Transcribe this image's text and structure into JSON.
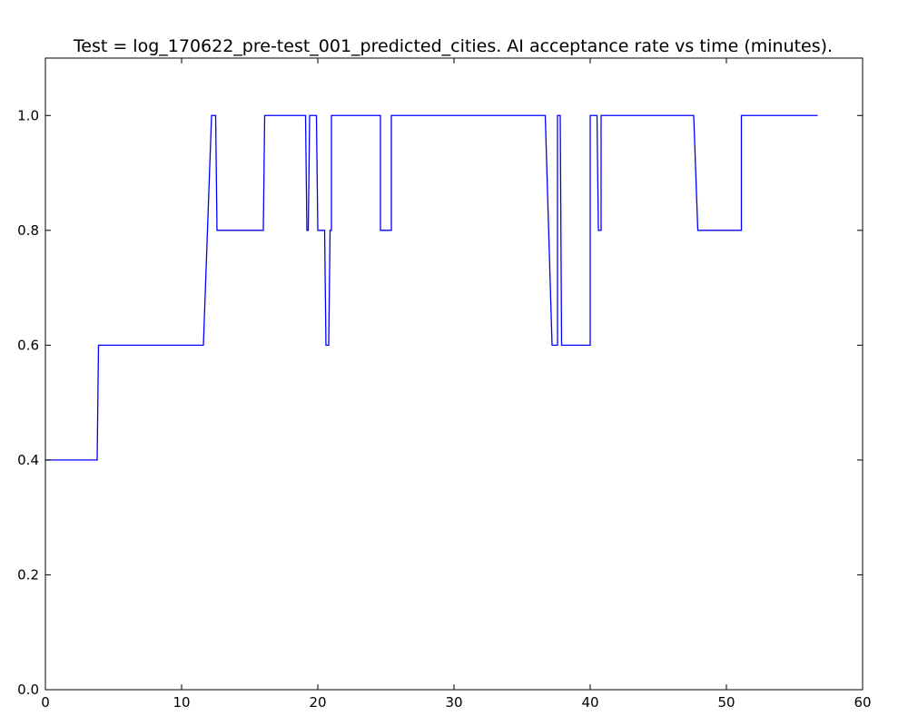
{
  "chart_data": {
    "type": "line",
    "title": "Test = log_170622_pre-test_001_predicted_cities. AI acceptance rate vs time (minutes).",
    "xlabel": "",
    "ylabel": "",
    "xlim": [
      0,
      60
    ],
    "ylim": [
      0.0,
      1.1
    ],
    "x_ticks": [
      0,
      10,
      20,
      30,
      40,
      50,
      60
    ],
    "x_tick_labels": [
      "0",
      "10",
      "20",
      "30",
      "40",
      "50",
      "60"
    ],
    "y_ticks": [
      0.0,
      0.2,
      0.4,
      0.6,
      0.8,
      1.0
    ],
    "y_tick_labels": [
      "0.0",
      "0.2",
      "0.4",
      "0.6",
      "0.8",
      "1.0"
    ],
    "grid": false,
    "series": [
      {
        "color": "#0000ff",
        "points": [
          [
            0.0,
            0.4
          ],
          [
            3.8,
            0.4
          ],
          [
            3.9,
            0.6
          ],
          [
            11.6,
            0.6
          ],
          [
            12.2,
            1.0
          ],
          [
            12.5,
            1.0
          ],
          [
            12.6,
            0.8
          ],
          [
            16.0,
            0.8
          ],
          [
            16.1,
            1.0
          ],
          [
            19.1,
            1.0
          ],
          [
            19.2,
            0.8
          ],
          [
            19.3,
            0.8
          ],
          [
            19.4,
            1.0
          ],
          [
            19.9,
            1.0
          ],
          [
            20.0,
            0.8
          ],
          [
            20.5,
            0.8
          ],
          [
            20.6,
            0.6
          ],
          [
            20.8,
            0.6
          ],
          [
            20.9,
            0.8
          ],
          [
            21.0,
            0.8
          ],
          [
            21.0,
            1.0
          ],
          [
            24.6,
            1.0
          ],
          [
            24.6,
            0.8
          ],
          [
            25.4,
            0.8
          ],
          [
            25.4,
            1.0
          ],
          [
            36.7,
            1.0
          ],
          [
            37.2,
            0.6
          ],
          [
            37.6,
            0.6
          ],
          [
            37.6,
            1.0
          ],
          [
            37.8,
            1.0
          ],
          [
            37.9,
            0.6
          ],
          [
            40.0,
            0.6
          ],
          [
            40.0,
            1.0
          ],
          [
            40.5,
            1.0
          ],
          [
            40.6,
            0.8
          ],
          [
            40.8,
            0.8
          ],
          [
            40.8,
            1.0
          ],
          [
            47.6,
            1.0
          ],
          [
            47.9,
            0.8
          ],
          [
            51.1,
            0.8
          ],
          [
            51.1,
            1.0
          ],
          [
            56.7,
            1.0
          ]
        ]
      }
    ]
  }
}
